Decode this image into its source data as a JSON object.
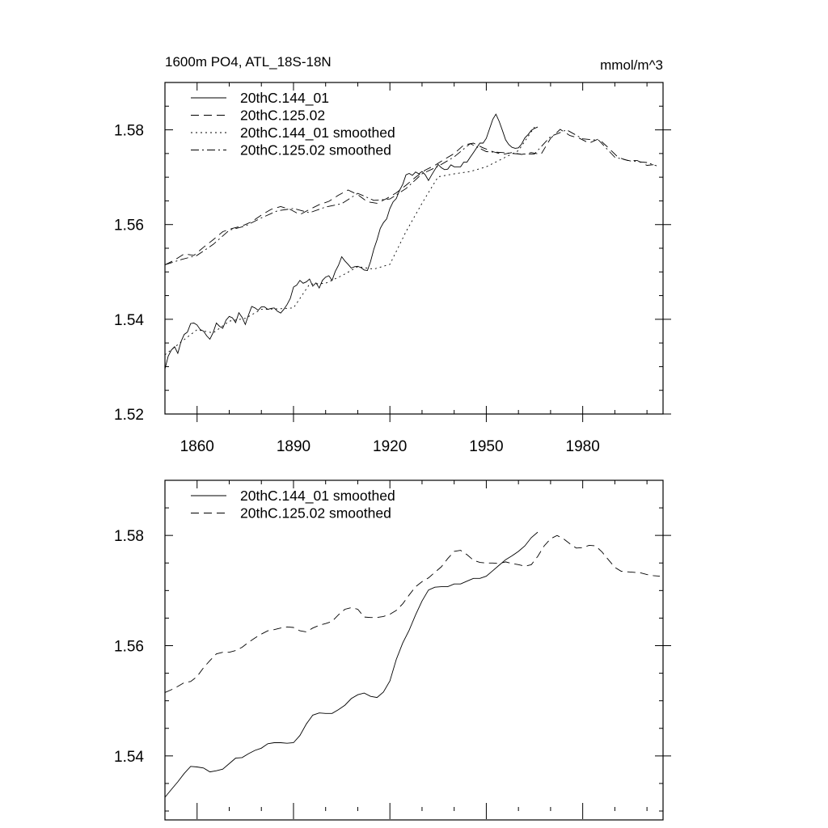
{
  "chart_data": [
    {
      "type": "line",
      "title": "1600m PO4, ATL_18S-18N",
      "units": "mmol/m^3",
      "xlim": [
        1850,
        2005
      ],
      "ylim": [
        1.52,
        1.59
      ],
      "xticks": [
        1860,
        1890,
        1920,
        1950,
        1980
      ],
      "yticks": [
        1.52,
        1.54,
        1.56,
        1.58
      ],
      "ytick_labels": [
        "1.52",
        "1.54",
        "1.56",
        "1.58"
      ],
      "legend_position": "top-left",
      "grid": false,
      "series": [
        {
          "name": "20thC.144_01",
          "style": "solid",
          "x": [
            1850,
            1851,
            1852,
            1853,
            1854,
            1855,
            1856,
            1857,
            1858,
            1859,
            1860,
            1861,
            1862,
            1863,
            1864,
            1865,
            1866,
            1867,
            1868,
            1869,
            1870,
            1871,
            1872,
            1873,
            1874,
            1875,
            1876,
            1877,
            1878,
            1879,
            1880,
            1881,
            1882,
            1883,
            1884,
            1885,
            1886,
            1887,
            1888,
            1889,
            1890,
            1891,
            1892,
            1893,
            1894,
            1895,
            1896,
            1897,
            1898,
            1899,
            1900,
            1901,
            1902,
            1903,
            1904,
            1905,
            1906,
            1907,
            1908,
            1909,
            1910,
            1911,
            1912,
            1913,
            1914,
            1915,
            1916,
            1917,
            1918,
            1919,
            1920,
            1921,
            1922,
            1923,
            1924,
            1925,
            1926,
            1927,
            1928,
            1929,
            1930,
            1931,
            1932,
            1933,
            1934,
            1935,
            1936,
            1937,
            1938,
            1939,
            1940,
            1941,
            1942,
            1943,
            1944,
            1945,
            1946,
            1947,
            1948,
            1949,
            1950,
            1951,
            1952,
            1953,
            1954,
            1955,
            1956,
            1957,
            1958,
            1959,
            1960,
            1961,
            1962,
            1963,
            1964,
            1965,
            1966
          ],
          "values": [
            1.5295,
            1.5322,
            1.5335,
            1.5342,
            1.5328,
            1.5353,
            1.5368,
            1.5373,
            1.5391,
            1.5392,
            1.5388,
            1.5378,
            1.5375,
            1.5365,
            1.5358,
            1.5372,
            1.5392,
            1.5385,
            1.5381,
            1.5398,
            1.5406,
            1.5403,
            1.5393,
            1.5414,
            1.5404,
            1.5389,
            1.5409,
            1.5427,
            1.5424,
            1.5419,
            1.5426,
            1.5426,
            1.5421,
            1.5423,
            1.5424,
            1.5417,
            1.5413,
            1.5421,
            1.5431,
            1.5444,
            1.5468,
            1.5472,
            1.5482,
            1.5476,
            1.5479,
            1.5485,
            1.547,
            1.5477,
            1.5466,
            1.5482,
            1.5489,
            1.5492,
            1.5482,
            1.5501,
            1.5514,
            1.5532,
            1.5523,
            1.5516,
            1.5508,
            1.5511,
            1.5512,
            1.5509,
            1.5504,
            1.5503,
            1.5522,
            1.5548,
            1.5568,
            1.5592,
            1.5604,
            1.5612,
            1.5634,
            1.5648,
            1.5655,
            1.5672,
            1.5685,
            1.5705,
            1.5708,
            1.5704,
            1.5711,
            1.5707,
            1.5712,
            1.5705,
            1.5693,
            1.5705,
            1.5716,
            1.5727,
            1.572,
            1.5716,
            1.5717,
            1.5726,
            1.5722,
            1.5722,
            1.5722,
            1.5732,
            1.5732,
            1.5742,
            1.5752,
            1.5762,
            1.5772,
            1.5772,
            1.5782,
            1.5802,
            1.5822,
            1.5833,
            1.5818,
            1.5799,
            1.5779,
            1.5769,
            1.5763,
            1.5761,
            1.5762,
            1.577,
            1.5783,
            1.579,
            1.5799,
            1.5803,
            1.5806
          ]
        },
        {
          "name": "20thC.125.02",
          "style": "dashed",
          "x": [
            1850,
            1853,
            1856,
            1859,
            1862,
            1865,
            1868,
            1871,
            1874,
            1877,
            1880,
            1883,
            1886,
            1889,
            1892,
            1895,
            1898,
            1901,
            1904,
            1907,
            1910,
            1913,
            1916,
            1919,
            1922,
            1925,
            1928,
            1931,
            1934,
            1937,
            1940,
            1943,
            1946,
            1949,
            1952,
            1955,
            1958,
            1961,
            1964,
            1967,
            1970,
            1973,
            1976,
            1979,
            1982,
            1985,
            1988,
            1991,
            1994,
            1997,
            2000,
            2003
          ],
          "values": [
            1.5515,
            1.5525,
            1.5538,
            1.5535,
            1.5552,
            1.5568,
            1.5585,
            1.5592,
            1.5597,
            1.5606,
            1.562,
            1.5632,
            1.5638,
            1.5632,
            1.5621,
            1.5632,
            1.5642,
            1.5649,
            1.5662,
            1.5673,
            1.5663,
            1.5648,
            1.5645,
            1.5655,
            1.5667,
            1.5683,
            1.57,
            1.5715,
            1.5725,
            1.5738,
            1.575,
            1.5768,
            1.5772,
            1.5762,
            1.5754,
            1.5748,
            1.5752,
            1.5748,
            1.5752,
            1.5748,
            1.5782,
            1.5801,
            1.5788,
            1.5782,
            1.5772,
            1.5781,
            1.5762,
            1.5742,
            1.5735,
            1.5735,
            1.5725,
            1.5727
          ]
        },
        {
          "name": "20thC.144_01 smoothed",
          "style": "dotted",
          "x": [
            1850,
            1855,
            1860,
            1865,
            1870,
            1875,
            1880,
            1885,
            1890,
            1895,
            1900,
            1905,
            1910,
            1915,
            1920,
            1925,
            1930,
            1935,
            1940,
            1945,
            1950,
            1955,
            1960,
            1965
          ],
          "values": [
            1.5325,
            1.5352,
            1.5378,
            1.5371,
            1.5396,
            1.5402,
            1.5421,
            1.5422,
            1.5424,
            1.5474,
            1.5476,
            1.5492,
            1.5511,
            1.5506,
            1.5516,
            1.5585,
            1.5645,
            1.5701,
            1.5707,
            1.5712,
            1.5722,
            1.5739,
            1.5756,
            1.5806
          ]
        },
        {
          "name": "20thC.125.02 smoothed",
          "style": "dashdot",
          "x": [
            1850,
            1855,
            1860,
            1865,
            1870,
            1875,
            1880,
            1885,
            1890,
            1895,
            1900,
            1905,
            1910,
            1915,
            1920,
            1925,
            1930,
            1935,
            1940,
            1945,
            1950,
            1955,
            1960,
            1965,
            1970,
            1975,
            1980,
            1985,
            1990,
            1995,
            2000,
            2003
          ],
          "values": [
            1.5515,
            1.5526,
            1.5535,
            1.5558,
            1.5588,
            1.5597,
            1.5614,
            1.5629,
            1.5634,
            1.5625,
            1.5637,
            1.5644,
            1.5666,
            1.5651,
            1.5654,
            1.5676,
            1.5707,
            1.5723,
            1.5743,
            1.5771,
            1.5754,
            1.5752,
            1.5749,
            1.5749,
            1.5786,
            1.58,
            1.5781,
            1.5778,
            1.5742,
            1.5734,
            1.5731,
            1.5724
          ]
        }
      ]
    },
    {
      "type": "line",
      "xlim": [
        1850,
        2005
      ],
      "ylim": [
        1.53,
        1.59
      ],
      "xticks": [
        1860,
        1890,
        1920,
        1950,
        1980
      ],
      "yticks": [
        1.54,
        1.56,
        1.58
      ],
      "ytick_labels": [
        "1.54",
        "1.56",
        "1.58"
      ],
      "legend_position": "top-left",
      "grid": false,
      "series": [
        {
          "name": "20thC.144_01 smoothed",
          "style": "solid",
          "x": [
            1850,
            1852,
            1854,
            1856,
            1858,
            1860,
            1862,
            1864,
            1866,
            1868,
            1870,
            1872,
            1874,
            1876,
            1878,
            1880,
            1882,
            1884,
            1886,
            1888,
            1890,
            1892,
            1894,
            1896,
            1898,
            1900,
            1902,
            1904,
            1906,
            1908,
            1910,
            1912,
            1914,
            1916,
            1918,
            1920,
            1922,
            1924,
            1926,
            1928,
            1930,
            1932,
            1934,
            1936,
            1938,
            1940,
            1942,
            1944,
            1946,
            1948,
            1950,
            1952,
            1954,
            1956,
            1958,
            1960,
            1962,
            1964,
            1966
          ],
          "values": [
            1.5325,
            1.5339,
            1.5353,
            1.5368,
            1.5381,
            1.538,
            1.5378,
            1.5371,
            1.5373,
            1.5376,
            1.5386,
            1.5396,
            1.5397,
            1.5404,
            1.541,
            1.5414,
            1.5422,
            1.5424,
            1.5424,
            1.5423,
            1.5424,
            1.5437,
            1.5458,
            1.5474,
            1.5478,
            1.5477,
            1.5477,
            1.5484,
            1.5492,
            1.5504,
            1.5511,
            1.5514,
            1.5508,
            1.5506,
            1.5516,
            1.5536,
            1.5575,
            1.5605,
            1.5628,
            1.5656,
            1.5681,
            1.5701,
            1.5706,
            1.5707,
            1.5707,
            1.5712,
            1.5712,
            1.5717,
            1.5722,
            1.5722,
            1.5726,
            1.5736,
            1.5746,
            1.5756,
            1.5763,
            1.5771,
            1.5781,
            1.5796,
            1.5806
          ]
        },
        {
          "name": "20thC.125.02 smoothed",
          "style": "dashed",
          "x": [
            1850,
            1852,
            1854,
            1856,
            1858,
            1860,
            1862,
            1864,
            1866,
            1868,
            1870,
            1872,
            1874,
            1876,
            1878,
            1880,
            1882,
            1884,
            1886,
            1888,
            1890,
            1892,
            1894,
            1896,
            1898,
            1900,
            1902,
            1904,
            1906,
            1908,
            1910,
            1912,
            1914,
            1916,
            1918,
            1920,
            1922,
            1924,
            1926,
            1928,
            1930,
            1932,
            1934,
            1936,
            1938,
            1940,
            1942,
            1944,
            1946,
            1948,
            1950,
            1952,
            1954,
            1956,
            1958,
            1960,
            1962,
            1964,
            1966,
            1968,
            1970,
            1972,
            1974,
            1976,
            1978,
            1980,
            1982,
            1984,
            1986,
            1988,
            1990,
            1992,
            1994,
            1996,
            1998,
            2000,
            2002,
            2004
          ],
          "values": [
            1.5515,
            1.552,
            1.5526,
            1.5533,
            1.5535,
            1.5544,
            1.556,
            1.5573,
            1.5585,
            1.5588,
            1.5588,
            1.5591,
            1.5597,
            1.5606,
            1.5614,
            1.5621,
            1.5627,
            1.5629,
            1.5632,
            1.5634,
            1.5633,
            1.5627,
            1.5625,
            1.5632,
            1.5637,
            1.564,
            1.5644,
            1.5656,
            1.5666,
            1.5669,
            1.5666,
            1.5652,
            1.5651,
            1.5651,
            1.5653,
            1.5657,
            1.5664,
            1.5676,
            1.5692,
            1.5707,
            1.5716,
            1.5723,
            1.5733,
            1.5743,
            1.5758,
            1.5771,
            1.5773,
            1.5765,
            1.5755,
            1.5751,
            1.575,
            1.575,
            1.5749,
            1.5752,
            1.5749,
            1.5747,
            1.5744,
            1.5747,
            1.5762,
            1.5781,
            1.5794,
            1.58,
            1.5794,
            1.5785,
            1.5777,
            1.5778,
            1.5782,
            1.5781,
            1.577,
            1.5756,
            1.5742,
            1.5735,
            1.5734,
            1.5733,
            1.5732,
            1.5729,
            1.5727,
            1.5726
          ]
        }
      ]
    }
  ]
}
